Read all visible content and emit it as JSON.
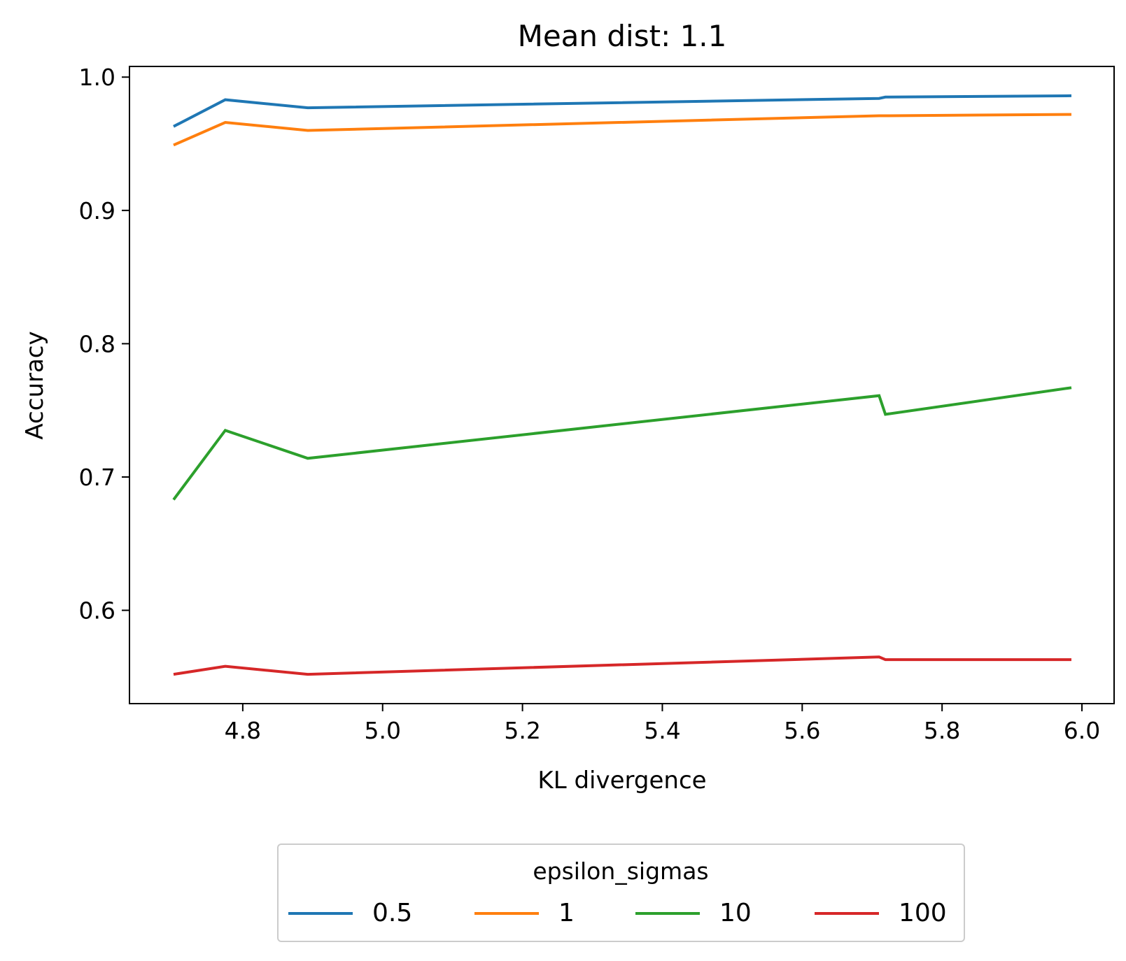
{
  "chart_data": {
    "type": "line",
    "title": "Mean dist: 1.1",
    "xlabel": "KL divergence",
    "ylabel": "Accuracy",
    "xlim": [
      4.638,
      6.046
    ],
    "ylim": [
      0.53,
      1.008
    ],
    "xticks": [
      4.8,
      5.0,
      5.2,
      5.4,
      5.6,
      5.8,
      6.0
    ],
    "xtick_labels": [
      "4.8",
      "5.0",
      "5.2",
      "5.4",
      "5.6",
      "5.8",
      "6.0"
    ],
    "yticks": [
      0.6,
      0.7,
      0.8,
      0.9,
      1.0
    ],
    "ytick_labels": [
      "0.6",
      "0.7",
      "0.8",
      "0.9",
      "1.0"
    ],
    "grid": false,
    "legend": {
      "title": "epsilon_sigmas",
      "placement": "bottom-center, below axes",
      "ncol": 4
    },
    "series": [
      {
        "name": "0.5",
        "color": "#1f77b4",
        "points": [
          [
            4.701,
            0.963
          ],
          [
            4.775,
            0.983
          ],
          [
            4.893,
            0.977
          ],
          [
            5.71,
            0.984
          ],
          [
            5.719,
            0.985
          ],
          [
            5.985,
            0.986
          ]
        ]
      },
      {
        "name": "1",
        "color": "#ff7f0e",
        "points": [
          [
            4.701,
            0.949
          ],
          [
            4.775,
            0.966
          ],
          [
            4.893,
            0.96
          ],
          [
            5.71,
            0.971
          ],
          [
            5.719,
            0.971
          ],
          [
            5.985,
            0.972
          ]
        ]
      },
      {
        "name": "10",
        "color": "#2ca02c",
        "points": [
          [
            4.701,
            0.683
          ],
          [
            4.775,
            0.735
          ],
          [
            4.893,
            0.714
          ],
          [
            5.71,
            0.761
          ],
          [
            5.719,
            0.747
          ],
          [
            5.985,
            0.767
          ]
        ]
      },
      {
        "name": "100",
        "color": "#d62728",
        "points": [
          [
            4.701,
            0.552
          ],
          [
            4.775,
            0.558
          ],
          [
            4.893,
            0.552
          ],
          [
            5.71,
            0.565
          ],
          [
            5.719,
            0.563
          ],
          [
            5.985,
            0.563
          ]
        ]
      }
    ]
  }
}
